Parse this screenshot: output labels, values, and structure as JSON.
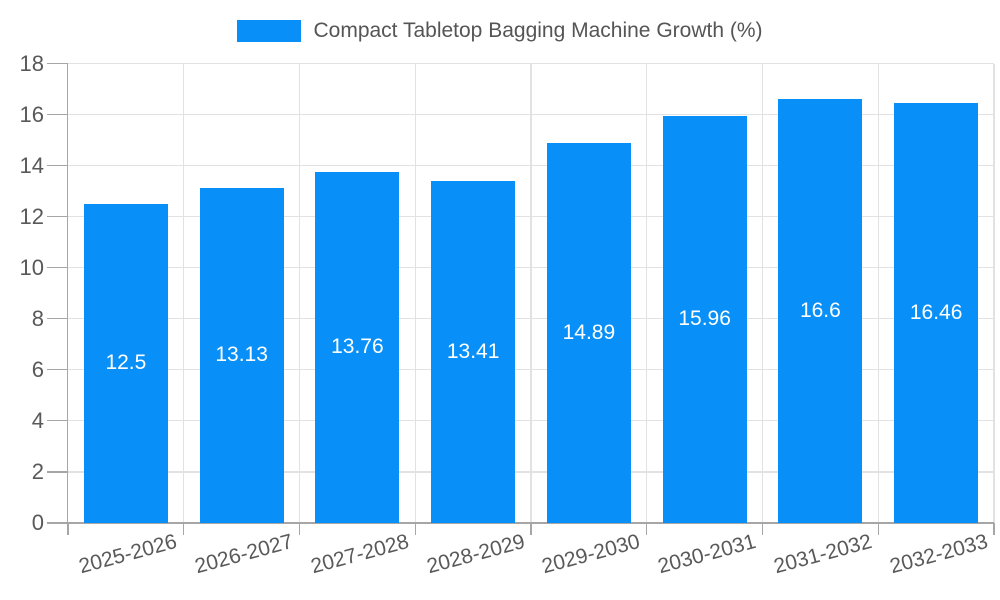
{
  "legend": {
    "label": "Compact Tabletop Bagging Machine Growth (%)"
  },
  "chart_data": {
    "type": "bar",
    "title": "Compact Tabletop Bagging Machine Growth (%)",
    "categories": [
      "2025-2026",
      "2026-2027",
      "2027-2028",
      "2028-2029",
      "2029-2030",
      "2030-2031",
      "2031-2032",
      "2032-2033"
    ],
    "series": [
      {
        "name": "Compact Tabletop Bagging Machine Growth (%)",
        "values": [
          12.5,
          13.13,
          13.76,
          13.41,
          14.89,
          15.96,
          16.6,
          16.46
        ]
      }
    ],
    "value_labels": [
      "12.5",
      "13.13",
      "13.76",
      "13.41",
      "14.89",
      "15.96",
      "16.6",
      "16.46"
    ],
    "xlabel": "",
    "ylabel": "",
    "ylim": [
      0,
      18
    ],
    "yticks": [
      0,
      2,
      4,
      6,
      8,
      10,
      12,
      14,
      16,
      18
    ],
    "grid": true,
    "legend_position": "top-center",
    "value_label_position": "center-of-bar",
    "x_label_rotation_deg": -15,
    "colors": {
      "bar": "#0990F8",
      "grid": "#E2E2E2",
      "axis": "#A6A6A6",
      "tick_label": "#595959",
      "value_label": "#FFFFFF",
      "legend_text": "#555555",
      "background": "#FFFFFF"
    }
  }
}
